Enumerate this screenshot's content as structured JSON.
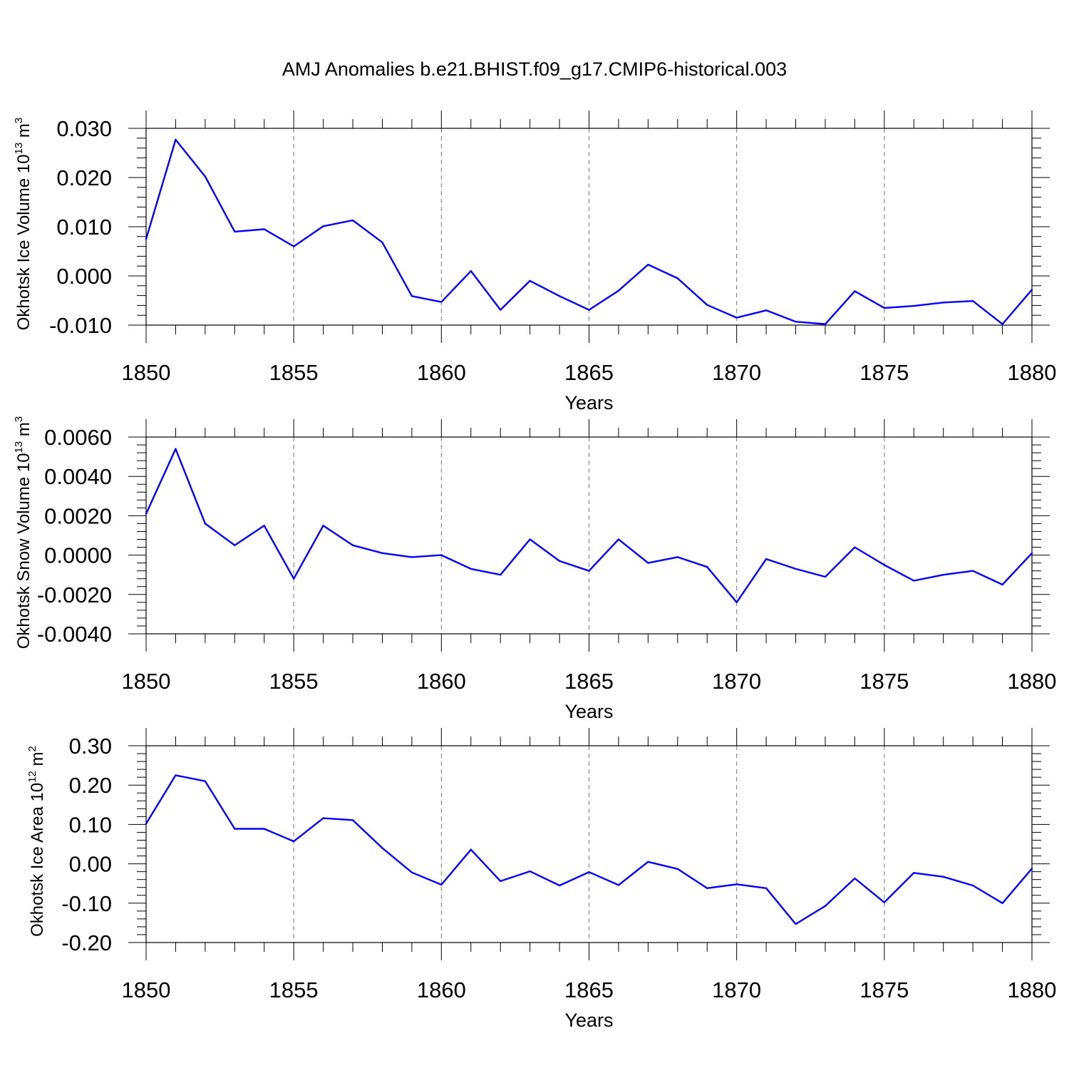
{
  "chart_data": {
    "type": "line",
    "title": "AMJ Anomalies b.e21.BHIST.f09_g17.CMIP6-historical.003",
    "line_color": "#0000ff",
    "grid_color": "#777777",
    "panels": [
      {
        "id": "ice-volume",
        "ylabel_text": "Okhotsk Ice Volume 10",
        "ylabel_exp": "13",
        "ylabel_unit": "m",
        "ylabel_unit_exp": "3",
        "xlabel": "Years",
        "xlim": [
          1850,
          1880
        ],
        "ylim": [
          -0.01,
          0.03
        ],
        "yticks": [
          -0.01,
          0.0,
          0.01,
          0.02,
          0.03
        ],
        "ytick_labels": [
          "-0.010",
          "0.000",
          "0.010",
          "0.020",
          "0.030"
        ],
        "xticks": [
          1850,
          1855,
          1860,
          1865,
          1870,
          1875,
          1880
        ],
        "xtick_labels": [
          "1850",
          "1855",
          "1860",
          "1865",
          "1870",
          "1875",
          "1880"
        ],
        "series": [
          {
            "name": "Okhotsk Ice Volume",
            "x": [
              1850,
              1851,
              1852,
              1853,
              1854,
              1855,
              1856,
              1857,
              1858,
              1859,
              1860,
              1861,
              1862,
              1863,
              1864,
              1865,
              1866,
              1867,
              1868,
              1869,
              1870,
              1871,
              1872,
              1873,
              1874,
              1875,
              1876,
              1877,
              1878,
              1879,
              1880
            ],
            "values": [
              0.0075,
              0.0277,
              0.0202,
              0.009,
              0.0095,
              0.006,
              0.0101,
              0.0113,
              0.0068,
              -0.0041,
              -0.0053,
              0.001,
              -0.0069,
              -0.001,
              -0.0041,
              -0.0069,
              -0.003,
              0.0023,
              -0.0005,
              -0.0059,
              -0.0085,
              -0.007,
              -0.0093,
              -0.0098,
              -0.0031,
              -0.0065,
              -0.0061,
              -0.0054,
              -0.0051,
              -0.0098,
              -0.0028
            ]
          }
        ]
      },
      {
        "id": "snow-volume",
        "ylabel_text": "Okhotsk Snow Volume 10",
        "ylabel_exp": "13",
        "ylabel_unit": "m",
        "ylabel_unit_exp": "3",
        "xlabel": "Years",
        "xlim": [
          1850,
          1880
        ],
        "ylim": [
          -0.004,
          0.006
        ],
        "yticks": [
          -0.004,
          -0.002,
          0.0,
          0.002,
          0.004,
          0.006
        ],
        "ytick_labels": [
          "-0.0040",
          "-0.0020",
          "0.0000",
          "0.0020",
          "0.0040",
          "0.0060"
        ],
        "xticks": [
          1850,
          1855,
          1860,
          1865,
          1870,
          1875,
          1880
        ],
        "xtick_labels": [
          "1850",
          "1855",
          "1860",
          "1865",
          "1870",
          "1875",
          "1880"
        ],
        "series": [
          {
            "name": "Okhotsk Snow Volume",
            "x": [
              1850,
              1851,
              1852,
              1853,
              1854,
              1855,
              1856,
              1857,
              1858,
              1859,
              1860,
              1861,
              1862,
              1863,
              1864,
              1865,
              1866,
              1867,
              1868,
              1869,
              1870,
              1871,
              1872,
              1873,
              1874,
              1875,
              1876,
              1877,
              1878,
              1879,
              1880
            ],
            "values": [
              0.0021,
              0.0054,
              0.0016,
              0.0005,
              0.0015,
              -0.0012,
              0.0015,
              0.0005,
              0.0001,
              -0.0001,
              0.0,
              -0.0007,
              -0.001,
              0.0008,
              -0.0003,
              -0.0008,
              0.0008,
              -0.0004,
              -0.0001,
              -0.0006,
              -0.0024,
              -0.0002,
              -0.0007,
              -0.0011,
              0.0004,
              -0.0005,
              -0.0013,
              -0.001,
              -0.0008,
              -0.0015,
              0.0001
            ]
          }
        ]
      },
      {
        "id": "ice-area",
        "ylabel_text": "Okhotsk Ice Area 10",
        "ylabel_exp": "12",
        "ylabel_unit": "m",
        "ylabel_unit_exp": "2",
        "xlabel": "Years",
        "xlim": [
          1850,
          1880
        ],
        "ylim": [
          -0.2,
          0.3
        ],
        "yticks": [
          -0.2,
          -0.1,
          0.0,
          0.1,
          0.2,
          0.3
        ],
        "ytick_labels": [
          "-0.20",
          "-0.10",
          "0.00",
          "0.10",
          "0.20",
          "0.30"
        ],
        "xticks": [
          1850,
          1855,
          1860,
          1865,
          1870,
          1875,
          1880
        ],
        "xtick_labels": [
          "1850",
          "1855",
          "1860",
          "1865",
          "1870",
          "1875",
          "1880"
        ],
        "series": [
          {
            "name": "Okhotsk Ice Area",
            "x": [
              1850,
              1851,
              1852,
              1853,
              1854,
              1855,
              1856,
              1857,
              1858,
              1859,
              1860,
              1861,
              1862,
              1863,
              1864,
              1865,
              1866,
              1867,
              1868,
              1869,
              1870,
              1871,
              1872,
              1873,
              1874,
              1875,
              1876,
              1877,
              1878,
              1879,
              1880
            ],
            "values": [
              0.102,
              0.225,
              0.21,
              0.089,
              0.089,
              0.057,
              0.116,
              0.111,
              0.04,
              -0.022,
              -0.053,
              0.036,
              -0.044,
              -0.019,
              -0.055,
              -0.021,
              -0.054,
              0.005,
              -0.013,
              -0.062,
              -0.052,
              -0.062,
              -0.153,
              -0.107,
              -0.037,
              -0.098,
              -0.023,
              -0.033,
              -0.055,
              -0.1,
              -0.012
            ]
          }
        ]
      }
    ]
  }
}
